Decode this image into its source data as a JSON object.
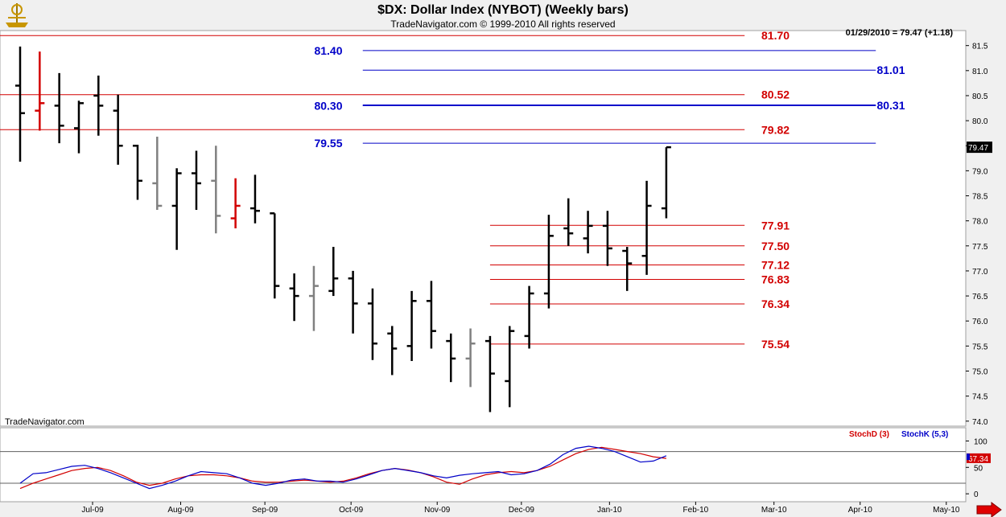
{
  "header": {
    "title": "$DX:  Dollar Index (NYBOT)  (Weekly bars)",
    "subtitle": "TradeNavigator.com © 1999-2010 All rights reserved",
    "quote": "01/29/2010 = 79.47 (+1.18)",
    "watermark": "TradeNavigator.com"
  },
  "colors": {
    "red": "#d20000",
    "blue": "#0000c8",
    "black": "#000000",
    "gray": "#808080"
  },
  "chart_data": [
    {
      "type": "bar",
      "title": "$DX:  Dollar Index (NYBOT)  (Weekly bars)",
      "ylim": [
        73.9,
        81.8
      ],
      "yticks": [
        "74.0",
        "74.5",
        "75.0",
        "75.5",
        "76.0",
        "76.5",
        "77.0",
        "77.5",
        "78.0",
        "78.5",
        "79.0",
        "79.5",
        "80.0",
        "80.5",
        "81.0",
        "81.5"
      ],
      "months": [
        {
          "label": "Jul-09",
          "week": 3.7
        },
        {
          "label": "Aug-09",
          "week": 8.2
        },
        {
          "label": "Sep-09",
          "week": 12.5
        },
        {
          "label": "Oct-09",
          "week": 16.9
        },
        {
          "label": "Nov-09",
          "week": 21.3
        },
        {
          "label": "Dec-09",
          "week": 25.6
        },
        {
          "label": "Jan-10",
          "week": 30.1
        },
        {
          "label": "Feb-10",
          "week": 34.5
        },
        {
          "label": "Mar-10",
          "week": 38.5
        },
        {
          "label": "Apr-10",
          "week": 42.9
        },
        {
          "label": "May-10",
          "week": 47.3
        }
      ],
      "last_value_label": "79.47",
      "bars": [
        {
          "o": 80.7,
          "h": 81.48,
          "l": 79.18,
          "c": 80.15,
          "col": "black"
        },
        {
          "o": 80.2,
          "h": 81.38,
          "l": 79.8,
          "c": 80.35,
          "col": "red"
        },
        {
          "o": 80.3,
          "h": 80.95,
          "l": 79.55,
          "c": 79.9,
          "col": "black"
        },
        {
          "o": 79.85,
          "h": 80.4,
          "l": 79.35,
          "c": 80.35,
          "col": "black"
        },
        {
          "o": 80.5,
          "h": 80.9,
          "l": 79.7,
          "c": 80.3,
          "col": "black"
        },
        {
          "o": 80.2,
          "h": 80.52,
          "l": 79.12,
          "c": 79.5,
          "col": "black"
        },
        {
          "o": 79.5,
          "h": 79.52,
          "l": 78.42,
          "c": 78.8,
          "col": "black"
        },
        {
          "o": 78.75,
          "h": 79.68,
          "l": 78.22,
          "c": 78.3,
          "col": "gray"
        },
        {
          "o": 78.3,
          "h": 79.05,
          "l": 77.42,
          "c": 78.95,
          "col": "black"
        },
        {
          "o": 78.95,
          "h": 79.4,
          "l": 78.22,
          "c": 78.75,
          "col": "black"
        },
        {
          "o": 78.8,
          "h": 79.5,
          "l": 77.75,
          "c": 78.1,
          "col": "gray"
        },
        {
          "o": 78.05,
          "h": 78.85,
          "l": 77.85,
          "c": 78.3,
          "col": "red"
        },
        {
          "o": 78.25,
          "h": 78.92,
          "l": 77.95,
          "c": 78.2,
          "col": "black"
        },
        {
          "o": 78.15,
          "h": 78.15,
          "l": 76.45,
          "c": 76.7,
          "col": "black"
        },
        {
          "o": 76.65,
          "h": 76.95,
          "l": 76.0,
          "c": 76.5,
          "col": "black"
        },
        {
          "o": 76.5,
          "h": 77.1,
          "l": 75.8,
          "c": 76.7,
          "col": "gray"
        },
        {
          "o": 76.6,
          "h": 77.48,
          "l": 76.5,
          "c": 76.85,
          "col": "black"
        },
        {
          "o": 76.85,
          "h": 77.0,
          "l": 75.75,
          "c": 76.35,
          "col": "black"
        },
        {
          "o": 76.35,
          "h": 76.65,
          "l": 75.22,
          "c": 75.55,
          "col": "black"
        },
        {
          "o": 75.75,
          "h": 75.9,
          "l": 74.92,
          "c": 75.45,
          "col": "black"
        },
        {
          "o": 75.5,
          "h": 76.6,
          "l": 75.2,
          "c": 76.4,
          "col": "black"
        },
        {
          "o": 76.4,
          "h": 76.8,
          "l": 75.45,
          "c": 75.8,
          "col": "black"
        },
        {
          "o": 75.6,
          "h": 75.75,
          "l": 74.78,
          "c": 75.25,
          "col": "black"
        },
        {
          "o": 75.25,
          "h": 75.85,
          "l": 74.68,
          "c": 75.55,
          "col": "gray"
        },
        {
          "o": 75.6,
          "h": 75.7,
          "l": 74.18,
          "c": 74.95,
          "col": "black"
        },
        {
          "o": 74.8,
          "h": 75.9,
          "l": 74.28,
          "c": 75.8,
          "col": "black"
        },
        {
          "o": 75.7,
          "h": 76.7,
          "l": 75.45,
          "c": 76.55,
          "col": "black"
        },
        {
          "o": 76.55,
          "h": 78.12,
          "l": 76.25,
          "c": 77.7,
          "col": "black"
        },
        {
          "o": 77.85,
          "h": 78.45,
          "l": 77.5,
          "c": 77.75,
          "col": "black"
        },
        {
          "o": 77.65,
          "h": 78.2,
          "l": 77.35,
          "c": 77.9,
          "col": "black"
        },
        {
          "o": 77.9,
          "h": 78.2,
          "l": 77.1,
          "c": 77.45,
          "col": "black"
        },
        {
          "o": 77.4,
          "h": 77.48,
          "l": 76.6,
          "c": 77.15,
          "col": "black"
        },
        {
          "o": 77.3,
          "h": 78.8,
          "l": 76.92,
          "c": 78.3,
          "col": "black"
        },
        {
          "o": 78.25,
          "h": 79.47,
          "l": 78.05,
          "c": 79.47,
          "col": "black"
        }
      ],
      "levels": [
        {
          "value": 81.7,
          "label": "81.70",
          "color": "red",
          "start": 0,
          "end": 37.0,
          "label_side": "right"
        },
        {
          "value": 81.4,
          "label": "81.40",
          "color": "blue",
          "start": 17.5,
          "end": 43.7,
          "label_side": "left"
        },
        {
          "value": 81.01,
          "label": "81.01",
          "color": "blue",
          "start": 17.5,
          "end": 43.7,
          "label_side": "far"
        },
        {
          "value": 80.52,
          "label": "80.52",
          "color": "red",
          "start": 0,
          "end": 37.0,
          "label_side": "right"
        },
        {
          "value": 80.3,
          "label": "80.30",
          "color": "blue",
          "start": 17.5,
          "end": 43.7,
          "label_side": "left"
        },
        {
          "value": 80.31,
          "label": "80.31",
          "color": "blue",
          "start": 17.5,
          "end": 43.7,
          "label_side": "far"
        },
        {
          "value": 79.82,
          "label": "79.82",
          "color": "red",
          "start": 0,
          "end": 37.0,
          "label_side": "right"
        },
        {
          "value": 79.55,
          "label": "79.55",
          "color": "blue",
          "start": 17.5,
          "end": 43.7,
          "label_side": "left"
        },
        {
          "value": 77.91,
          "label": "77.91",
          "color": "red",
          "start": 24.0,
          "end": 37.0,
          "label_side": "right"
        },
        {
          "value": 77.5,
          "label": "77.50",
          "color": "red",
          "start": 24.0,
          "end": 37.0,
          "label_side": "right"
        },
        {
          "value": 77.12,
          "label": "77.12",
          "color": "red",
          "start": 24.0,
          "end": 37.0,
          "label_side": "right"
        },
        {
          "value": 76.83,
          "label": "76.83",
          "color": "red",
          "start": 24.0,
          "end": 37.0,
          "label_side": "right"
        },
        {
          "value": 76.34,
          "label": "76.34",
          "color": "red",
          "start": 24.0,
          "end": 37.0,
          "label_side": "right"
        },
        {
          "value": 75.54,
          "label": "75.54",
          "color": "red",
          "start": 24.0,
          "end": 37.0,
          "label_side": "right"
        }
      ]
    },
    {
      "type": "line",
      "ylim": [
        -15,
        125
      ],
      "yticks": [
        "0",
        "50",
        "100"
      ],
      "ref_lines": [
        20,
        80
      ],
      "legend": [
        {
          "label": "StochD (3)",
          "color": "red"
        },
        {
          "label": "StochK (5,3)",
          "color": "blue"
        }
      ],
      "last_value_label": "67.34",
      "series": [
        {
          "name": "StochD (3)",
          "color": "red",
          "values": [
            10,
            20,
            28,
            36,
            44,
            48,
            50,
            44,
            34,
            22,
            16,
            20,
            28,
            34,
            36,
            36,
            34,
            30,
            24,
            22,
            22,
            24,
            26,
            24,
            22,
            24,
            30,
            38,
            44,
            48,
            45,
            40,
            32,
            22,
            18,
            28,
            36,
            40,
            42,
            40,
            44,
            52,
            64,
            76,
            84,
            88,
            84,
            80,
            76,
            70,
            67
          ]
        },
        {
          "name": "StochK (5,3)",
          "color": "blue",
          "values": [
            20,
            38,
            40,
            46,
            52,
            54,
            48,
            40,
            30,
            20,
            10,
            16,
            24,
            34,
            42,
            40,
            38,
            30,
            20,
            16,
            20,
            26,
            28,
            24,
            24,
            22,
            28,
            36,
            44,
            48,
            44,
            40,
            34,
            30,
            35,
            38,
            40,
            42,
            36,
            38,
            44,
            56,
            74,
            86,
            90,
            86,
            80,
            70,
            60,
            62,
            72
          ]
        }
      ]
    }
  ]
}
